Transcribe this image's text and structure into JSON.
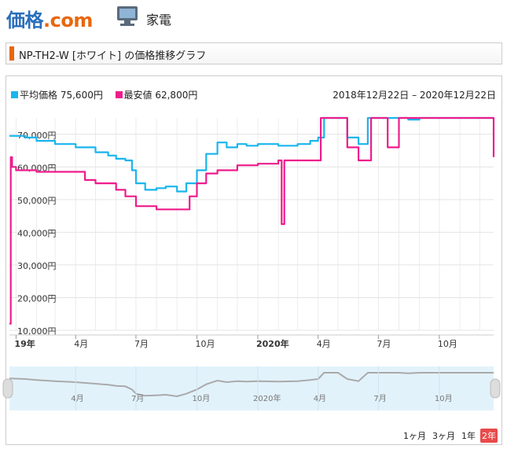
{
  "site": {
    "logo_main": "価格",
    "logo_dot": ".com",
    "category": "家電"
  },
  "title": "NP-TH2-W [ホワイト] の価格推移グラフ",
  "legend": {
    "avg_label": "平均価格",
    "avg_value": "75,600円",
    "min_label": "最安値",
    "min_value": "62,800円"
  },
  "date_range": "2018年12月22日 – 2020年12月22日",
  "buttons": [
    "1ヶ月",
    "3ヶ月",
    "1年",
    "2年"
  ],
  "active_button": "2年",
  "colors": {
    "avg": "#19b5ee",
    "min": "#ee1c8c",
    "nav_bg": "#e2f2fb",
    "nav_line": "#aaaaaa"
  },
  "chart_data": {
    "type": "line",
    "title": "",
    "ylim": [
      10000,
      75000
    ],
    "y_ticks": [
      "10,000円",
      "20,000円",
      "30,000円",
      "40,000円",
      "50,000円",
      "60,000円",
      "70,000円"
    ],
    "x_ticks": [
      {
        "label": "19年",
        "x": "2019-01",
        "bold": true
      },
      {
        "label": "4月",
        "x": "2019-04"
      },
      {
        "label": "7月",
        "x": "2019-07"
      },
      {
        "label": "10月",
        "x": "2019-10"
      },
      {
        "label": "2020年",
        "x": "2020-01",
        "bold": true
      },
      {
        "label": "4月",
        "x": "2020-04"
      },
      {
        "label": "7月",
        "x": "2020-07"
      },
      {
        "label": "10月",
        "x": "2020-10"
      }
    ],
    "navigator_ticks": [
      "4月",
      "7月",
      "10月",
      "2020年",
      "4月",
      "7月",
      "10月"
    ],
    "series": [
      {
        "name": "平均価格",
        "x": [
          "2018-12-22",
          "2019-01-15",
          "2019-02-01",
          "2019-03-01",
          "2019-04-01",
          "2019-05-01",
          "2019-05-20",
          "2019-06-01",
          "2019-06-15",
          "2019-06-25",
          "2019-07-01",
          "2019-07-15",
          "2019-08-01",
          "2019-08-15",
          "2019-09-01",
          "2019-09-15",
          "2019-10-01",
          "2019-10-15",
          "2019-11-01",
          "2019-11-15",
          "2019-12-01",
          "2019-12-15",
          "2020-01-01",
          "2020-02-01",
          "2020-03-01",
          "2020-03-20",
          "2020-04-01",
          "2020-04-10",
          "2020-05-01",
          "2020-05-15",
          "2020-06-01",
          "2020-06-15",
          "2020-07-01",
          "2020-08-01",
          "2020-08-15",
          "2020-09-01",
          "2020-10-01",
          "2020-11-01",
          "2020-12-22"
        ],
        "values": [
          69500,
          69000,
          68000,
          67000,
          66000,
          64500,
          63500,
          62500,
          62000,
          59000,
          55000,
          53000,
          53500,
          54000,
          52500,
          55000,
          59000,
          64000,
          67500,
          66000,
          67000,
          66500,
          67000,
          66500,
          67000,
          68000,
          69000,
          75000,
          75000,
          69000,
          67000,
          75000,
          75000,
          75000,
          74500,
          75000,
          75000,
          75000,
          75000
        ]
      },
      {
        "name": "最安値",
        "x": [
          "2018-12-22",
          "2018-12-24",
          "2018-12-26",
          "2019-01-01",
          "2019-02-01",
          "2019-03-01",
          "2019-04-01",
          "2019-04-15",
          "2019-05-01",
          "2019-06-01",
          "2019-06-15",
          "2019-07-01",
          "2019-08-01",
          "2019-09-01",
          "2019-09-20",
          "2019-10-01",
          "2019-10-15",
          "2019-11-01",
          "2019-12-01",
          "2020-01-01",
          "2020-01-20",
          "2020-02-01",
          "2020-02-06",
          "2020-02-10",
          "2020-03-01",
          "2020-04-01",
          "2020-04-05",
          "2020-05-01",
          "2020-05-15",
          "2020-06-01",
          "2020-06-20",
          "2020-07-01",
          "2020-07-15",
          "2020-08-01",
          "2020-09-01",
          "2020-10-01",
          "2020-11-01",
          "2020-12-01",
          "2020-12-22"
        ],
        "values": [
          12000,
          63000,
          60000,
          59000,
          58500,
          58500,
          58500,
          56000,
          55000,
          53000,
          51000,
          48000,
          47000,
          47000,
          51000,
          55000,
          58000,
          59000,
          60500,
          61000,
          61000,
          62000,
          42500,
          62000,
          62000,
          62000,
          75000,
          75000,
          66000,
          62000,
          75000,
          75000,
          66000,
          75000,
          75000,
          75000,
          75000,
          75000,
          63000
        ]
      }
    ]
  }
}
